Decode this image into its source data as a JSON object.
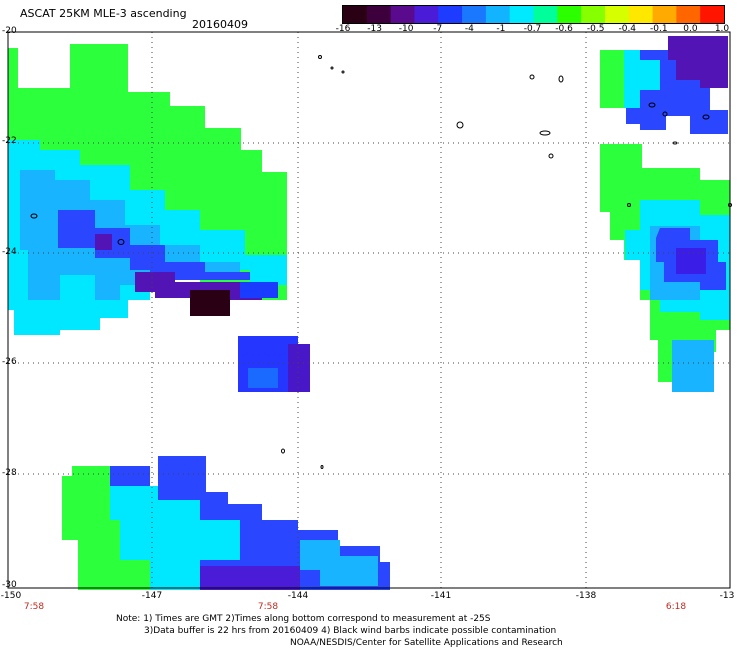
{
  "header": {
    "title": "ASCAT 25KM MLE-3 ascending",
    "date": "20160409"
  },
  "colorbar": {
    "labels": [
      "-16",
      "-13",
      "-10",
      "-7",
      "-4",
      "-1",
      "-0.7",
      "-0.6",
      "-0.5",
      "-0.4",
      "-0.1",
      "0.0",
      "1.0"
    ],
    "colors": [
      "#2a0014",
      "#3d003c",
      "#5a0a8c",
      "#4a1cd8",
      "#1e3cff",
      "#1a78ff",
      "#12b4ff",
      "#00eaff",
      "#00ff9a",
      "#2cff00",
      "#86ff00",
      "#d6ff00",
      "#ffe800",
      "#ffaa00",
      "#ff6600",
      "#ff1400"
    ]
  },
  "axes": {
    "y_labels": [
      "-20",
      "-22",
      "-24",
      "-26",
      "-28",
      "-30"
    ],
    "x_labels": [
      "-150",
      "-147",
      "-144",
      "-141",
      "-138",
      "-13"
    ],
    "time_labels": [
      "7:58",
      "7:58",
      "6:18"
    ]
  },
  "notes": {
    "line1": "Note: 1) Times are GMT 2)Times along bottom correspond to measurement at -25S",
    "line2": "3)Data buffer is 22 hrs from 20160409 4) Black wind barbs indicate possible contamination",
    "line3": "NOAA/NESDIS/Center for Satellite Applications and Research"
  }
}
